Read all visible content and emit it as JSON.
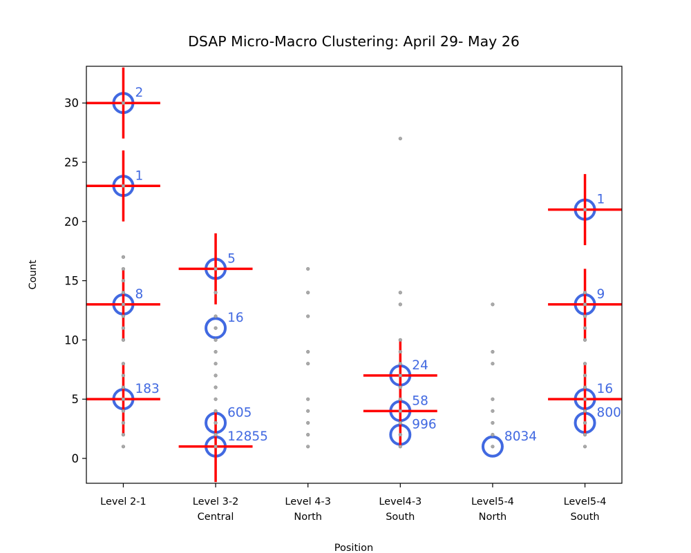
{
  "chart_data": {
    "type": "scatter",
    "title": "DSAP Micro-Macro Clustering: April 29- May 26",
    "xlabel": "Position",
    "ylabel": "Count",
    "categories": [
      "Level 2-1",
      "Level 3-2\nCentral",
      "Level 4-3\nNorth",
      "Level4-3\nSouth",
      "Level5-4\nNorth",
      "Level5-4\nSouth"
    ],
    "ylim": [
      -2.1,
      33.1
    ],
    "yticks": [
      0,
      5,
      10,
      15,
      20,
      25,
      30
    ],
    "point_color": "#aaaaaa",
    "cluster_color": "#4169e1",
    "points": [
      [
        1,
        2,
        3,
        4,
        5,
        6,
        7,
        8,
        10,
        11,
        12,
        13,
        14,
        15,
        16,
        17,
        23,
        30
      ],
      [
        1,
        2,
        3,
        4,
        5,
        6,
        7,
        8,
        9,
        10,
        11,
        12,
        14,
        16
      ],
      [
        1,
        2,
        3,
        4,
        5,
        8,
        9,
        12,
        14,
        16
      ],
      [
        1,
        2,
        3,
        4,
        5,
        6,
        7,
        8,
        9,
        10,
        13,
        14,
        27
      ],
      [
        1,
        2,
        3,
        4,
        5,
        8,
        9,
        13
      ],
      [
        1,
        2,
        3,
        4,
        5,
        6,
        7,
        8,
        10,
        11,
        12,
        13,
        14,
        21
      ]
    ],
    "error_bars": {
      "xerr": 0.4,
      "yerr": 3,
      "color": "#ff0000"
    },
    "clusters": [
      {
        "category": 0,
        "y": 30,
        "size": 2,
        "cross": true
      },
      {
        "category": 0,
        "y": 23,
        "size": 1,
        "cross": true
      },
      {
        "category": 0,
        "y": 13,
        "size": 8,
        "cross": true
      },
      {
        "category": 0,
        "y": 5,
        "size": 183,
        "cross": true
      },
      {
        "category": 1,
        "y": 16,
        "size": 5,
        "cross": true
      },
      {
        "category": 1,
        "y": 11,
        "size": 16,
        "cross": false
      },
      {
        "category": 1,
        "y": 3,
        "size": 605,
        "cross": false
      },
      {
        "category": 1,
        "y": 1,
        "size": 12855,
        "cross": true
      },
      {
        "category": 3,
        "y": 7,
        "size": 24,
        "cross": true
      },
      {
        "category": 3,
        "y": 4,
        "size": 58,
        "cross": true
      },
      {
        "category": 3,
        "y": 2,
        "size": 996,
        "cross": false
      },
      {
        "category": 4,
        "y": 1,
        "size": 8034,
        "cross": false
      },
      {
        "category": 5,
        "y": 21,
        "size": 1,
        "cross": true
      },
      {
        "category": 5,
        "y": 13,
        "size": 9,
        "cross": true
      },
      {
        "category": 5,
        "y": 5,
        "size": 16,
        "cross": true
      },
      {
        "category": 5,
        "y": 3,
        "size": 800,
        "cross": false
      }
    ]
  }
}
